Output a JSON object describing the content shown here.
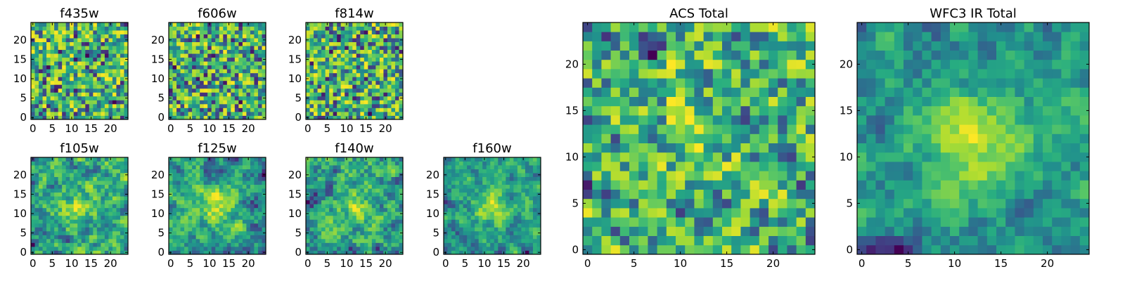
{
  "chart_data": [
    {
      "type": "heatmap",
      "title": "f435w",
      "grid_size": 25,
      "xlim": [
        0,
        24
      ],
      "ylim": [
        0,
        24
      ],
      "xticks": [
        "0",
        "5",
        "10",
        "15",
        "20"
      ],
      "yticks": [
        "0",
        "5",
        "10",
        "15",
        "20"
      ],
      "colormap": "viridis"
    },
    {
      "type": "heatmap",
      "title": "f606w",
      "grid_size": 25,
      "xlim": [
        0,
        24
      ],
      "ylim": [
        0,
        24
      ],
      "xticks": [
        "0",
        "5",
        "10",
        "15",
        "20"
      ],
      "yticks": [
        "0",
        "5",
        "10",
        "15",
        "20"
      ],
      "colormap": "viridis"
    },
    {
      "type": "heatmap",
      "title": "f814w",
      "grid_size": 25,
      "xlim": [
        0,
        24
      ],
      "ylim": [
        0,
        24
      ],
      "xticks": [
        "0",
        "5",
        "10",
        "15",
        "20"
      ],
      "yticks": [
        "0",
        "5",
        "10",
        "15",
        "20"
      ],
      "colormap": "viridis"
    },
    {
      "type": "heatmap",
      "title": "f105w",
      "grid_size": 25,
      "xlim": [
        0,
        24
      ],
      "ylim": [
        0,
        24
      ],
      "xticks": [
        "0",
        "5",
        "10",
        "15",
        "20"
      ],
      "yticks": [
        "0",
        "5",
        "10",
        "15",
        "20"
      ],
      "colormap": "viridis"
    },
    {
      "type": "heatmap",
      "title": "f125w",
      "grid_size": 25,
      "xlim": [
        0,
        24
      ],
      "ylim": [
        0,
        24
      ],
      "xticks": [
        "0",
        "5",
        "10",
        "15",
        "20"
      ],
      "yticks": [
        "0",
        "5",
        "10",
        "15",
        "20"
      ],
      "colormap": "viridis"
    },
    {
      "type": "heatmap",
      "title": "f140w",
      "grid_size": 25,
      "xlim": [
        0,
        24
      ],
      "ylim": [
        0,
        24
      ],
      "xticks": [
        "0",
        "5",
        "10",
        "15",
        "20"
      ],
      "yticks": [
        "0",
        "5",
        "10",
        "15",
        "20"
      ],
      "colormap": "viridis"
    },
    {
      "type": "heatmap",
      "title": "f160w",
      "grid_size": 25,
      "xlim": [
        0,
        24
      ],
      "ylim": [
        0,
        24
      ],
      "xticks": [
        "0",
        "5",
        "10",
        "15",
        "20"
      ],
      "yticks": [
        "0",
        "5",
        "10",
        "15",
        "20"
      ],
      "colormap": "viridis"
    },
    {
      "type": "heatmap",
      "title": "ACS Total",
      "grid_size": 25,
      "xlim": [
        0,
        24
      ],
      "ylim": [
        0,
        24
      ],
      "xticks": [
        "0",
        "5",
        "10",
        "15",
        "20"
      ],
      "yticks": [
        "0",
        "5",
        "10",
        "15",
        "20"
      ],
      "colormap": "viridis"
    },
    {
      "type": "heatmap",
      "title": "WFC3 IR Total",
      "grid_size": 25,
      "xlim": [
        0,
        24
      ],
      "ylim": [
        0,
        24
      ],
      "xticks": [
        "0",
        "5",
        "10",
        "15",
        "20"
      ],
      "yticks": [
        "0",
        "5",
        "10",
        "15",
        "20"
      ],
      "colormap": "viridis"
    }
  ]
}
